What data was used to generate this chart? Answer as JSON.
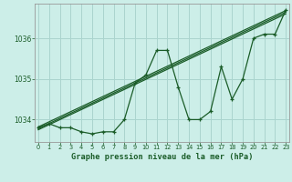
{
  "title": "Graphe pression niveau de la mer (hPa)",
  "bg_color": "#cceee8",
  "grid_color": "#aad4ce",
  "line_color": "#1a5c28",
  "x_values": [
    0,
    1,
    2,
    3,
    4,
    5,
    6,
    7,
    8,
    9,
    10,
    11,
    12,
    13,
    14,
    15,
    16,
    17,
    18,
    19,
    20,
    21,
    22,
    23
  ],
  "y_values": [
    1033.8,
    1033.9,
    1033.8,
    1033.8,
    1033.7,
    1033.65,
    1033.7,
    1033.7,
    1034.0,
    1034.9,
    1035.1,
    1035.7,
    1035.7,
    1034.8,
    1034.0,
    1034.0,
    1034.2,
    1035.3,
    1034.5,
    1035.0,
    1036.0,
    1036.1,
    1036.1,
    1036.7
  ],
  "ylim": [
    1033.45,
    1036.85
  ],
  "yticks": [
    1034,
    1035,
    1036
  ],
  "xlim": [
    -0.3,
    23.3
  ],
  "xticks": [
    0,
    1,
    2,
    3,
    4,
    5,
    6,
    7,
    8,
    9,
    10,
    11,
    12,
    13,
    14,
    15,
    16,
    17,
    18,
    19,
    20,
    21,
    22,
    23
  ],
  "trend1_x": [
    0,
    23
  ],
  "trend1_y": [
    1033.82,
    1036.68
  ],
  "trend2_x": [
    0,
    23
  ],
  "trend2_y": [
    1033.78,
    1036.64
  ],
  "trend3_x": [
    0,
    23
  ],
  "trend3_y": [
    1033.75,
    1036.6
  ]
}
